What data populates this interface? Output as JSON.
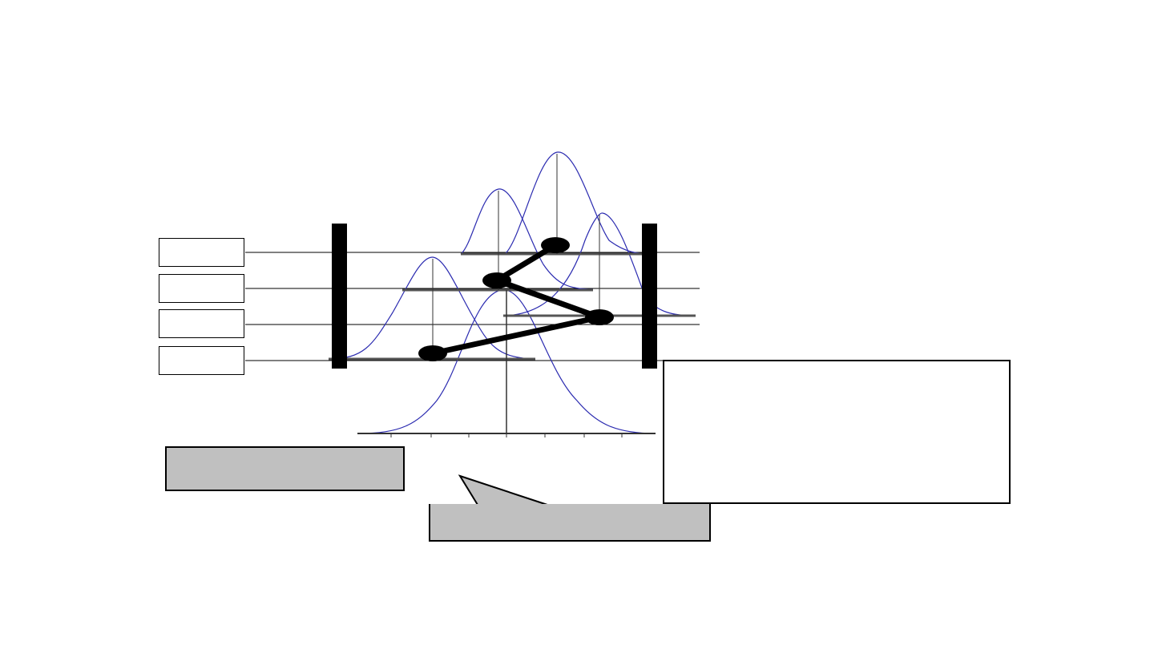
{
  "labels": [
    "",
    "",
    "",
    ""
  ],
  "left_callout": {
    "text": ""
  },
  "speech_callout": {
    "text": ""
  },
  "info_box": {
    "text": ""
  },
  "colors": {
    "curve": "#2b2bb0",
    "fill_gray": "#c0c0c0",
    "line": "#000000"
  }
}
